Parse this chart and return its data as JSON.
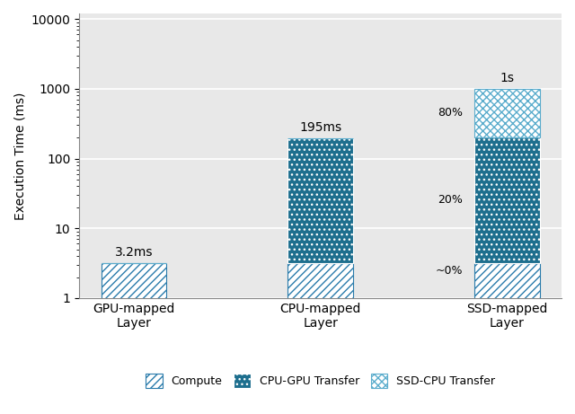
{
  "categories": [
    "GPU-mapped\nLayer",
    "CPU-mapped\nLayer",
    "SSD-mapped\nLayer"
  ],
  "compute_values": [
    3.2,
    3.2,
    3.2
  ],
  "cpu_gpu_values": [
    0.0,
    191.8,
    196.8
  ],
  "ssd_cpu_values": [
    0.0,
    0.0,
    800.0
  ],
  "total_labels": [
    "3.2ms",
    "195ms",
    "1s"
  ],
  "color_compute": "#ffffff",
  "color_compute_hatch": "#2a7bab",
  "color_cpu_gpu": "#1e6f8e",
  "color_ssd_cpu": "#ffffff",
  "color_ssd_cpu_hatch": "#5aaccc",
  "ylabel": "Execution Time (ms)",
  "ylim_min": 1,
  "ylim_max": 12000,
  "bar_width": 0.35,
  "legend_labels": [
    "Compute",
    "CPU-GPU Transfer",
    "SSD-CPU Transfer"
  ],
  "bg_color": "#e8e8e8",
  "grid_color": "#ffffff",
  "label_fontsize": 10,
  "tick_fontsize": 10
}
